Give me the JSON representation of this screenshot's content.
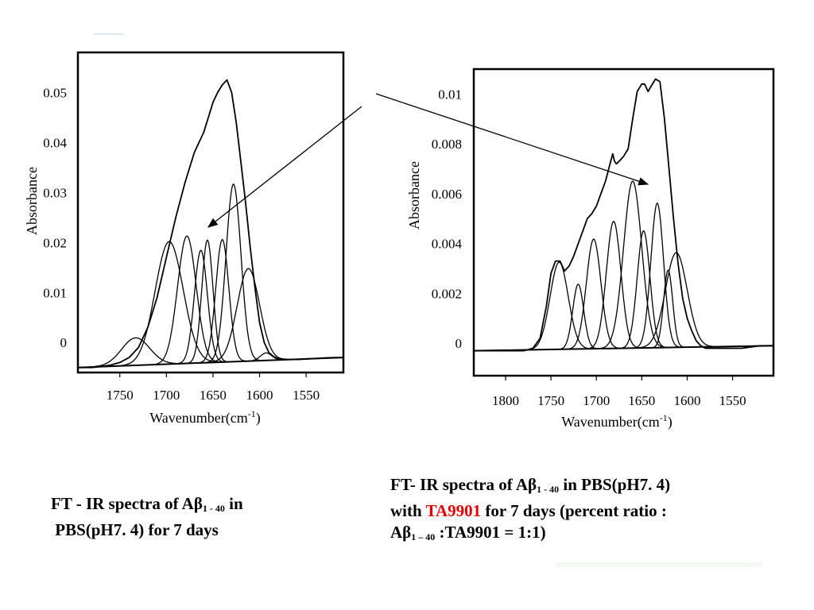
{
  "captions": {
    "left": {
      "line1_pre": "FT - IR spectra of A",
      "beta": "β",
      "sub": "1 - 40",
      "line1_post": " in",
      "line2": "PBS(pH7. 4) for 7 days"
    },
    "right": {
      "line1_pre": "FT- IR spectra of A",
      "beta": "β",
      "sub": "1 - 40",
      "line1_post": " in PBS(pH7. 4)",
      "line2_pre": "with ",
      "highlight": "TA9901",
      "line2_post": " for 7 days (percent ratio :",
      "line3_pre": "A",
      "beta2": "β",
      "sub2": "1 – 40",
      "line3_post": " :TA9901 = 1:1)"
    }
  },
  "colors": {
    "highlight": "#e60000",
    "line": "#000000"
  },
  "chart_data": [
    {
      "type": "line",
      "xlabel": "Wavenumber(cm",
      "xlabel_sup": "-1",
      "xlabel_close": ")",
      "ylabel": "Absorbance",
      "x_ticks": [
        1750,
        1700,
        1650,
        1600,
        1550
      ],
      "y_ticks": [
        0,
        0.01,
        0.02,
        0.03,
        0.04,
        0.05
      ],
      "y_tick_labels": [
        "0",
        "0.01",
        "0.02",
        "0.03",
        "0.04",
        "0.05"
      ],
      "xlim": [
        1795,
        1510
      ],
      "ylim": [
        -0.006,
        0.058
      ],
      "baseline": {
        "x": [
          1795,
          1510
        ],
        "y": [
          -0.005,
          -0.003
        ]
      },
      "envelope": {
        "x": [
          1795,
          1780,
          1770,
          1760,
          1750,
          1740,
          1730,
          1720,
          1710,
          1700,
          1690,
          1680,
          1670,
          1660,
          1655,
          1650,
          1645,
          1640,
          1635,
          1630,
          1625,
          1620,
          1615,
          1610,
          1605,
          1600,
          1595,
          1590,
          1585,
          1580,
          1570,
          1560,
          1550,
          1540,
          1530,
          1520,
          1510
        ],
        "y": [
          -0.005,
          -0.005,
          -0.0048,
          -0.0045,
          -0.004,
          -0.003,
          -0.001,
          0.003,
          0.009,
          0.017,
          0.025,
          0.032,
          0.038,
          0.042,
          0.045,
          0.048,
          0.05,
          0.0515,
          0.0525,
          0.05,
          0.044,
          0.036,
          0.028,
          0.019,
          0.011,
          0.004,
          0.0,
          -0.002,
          -0.0028,
          -0.0032,
          -0.0034,
          -0.0034,
          -0.0033,
          -0.0032,
          -0.0031,
          -0.003,
          -0.003
        ]
      },
      "components": [
        {
          "center": 1733,
          "height": 0.0055,
          "width": 15
        },
        {
          "center": 1697,
          "height": 0.0245,
          "width": 15
        },
        {
          "center": 1678,
          "height": 0.0255,
          "width": 10
        },
        {
          "center": 1663,
          "height": 0.0225,
          "width": 7
        },
        {
          "center": 1656,
          "height": 0.0245,
          "width": 6
        },
        {
          "center": 1640,
          "height": 0.0245,
          "width": 7
        },
        {
          "center": 1628,
          "height": 0.0355,
          "width": 8
        },
        {
          "center": 1612,
          "height": 0.0185,
          "width": 12
        },
        {
          "center": 1593,
          "height": 0.0015,
          "width": 6
        }
      ]
    },
    {
      "type": "line",
      "xlabel": "Wavenumber(cm",
      "xlabel_sup": "-1",
      "xlabel_close": ")",
      "ylabel": "Absorbance",
      "x_ticks": [
        1800,
        1750,
        1700,
        1650,
        1600,
        1550
      ],
      "y_ticks": [
        0,
        0.002,
        0.004,
        0.006,
        0.008,
        0.01
      ],
      "y_tick_labels": [
        "0",
        "0.002",
        "0.004",
        "0.006",
        "0.008",
        "0.01"
      ],
      "xlim": [
        1835,
        1505
      ],
      "ylim": [
        -0.0013,
        0.011
      ],
      "baseline": {
        "x": [
          1835,
          1505
        ],
        "y": [
          -0.0003,
          -0.0001
        ]
      },
      "envelope": {
        "x": [
          1835,
          1780,
          1770,
          1762,
          1755,
          1750,
          1745,
          1740,
          1735,
          1730,
          1725,
          1720,
          1715,
          1710,
          1705,
          1700,
          1695,
          1690,
          1685,
          1682,
          1680,
          1678,
          1675,
          1670,
          1665,
          1660,
          1655,
          1650,
          1647,
          1643,
          1640,
          1635,
          1630,
          1625,
          1620,
          1615,
          1610,
          1605,
          1600,
          1595,
          1590,
          1585,
          1580,
          1575,
          1570,
          1560,
          1540,
          1520,
          1505
        ],
        "y": [
          -0.0003,
          -0.0003,
          -0.0002,
          0.0002,
          0.0015,
          0.0028,
          0.0033,
          0.0033,
          0.0029,
          0.0031,
          0.0035,
          0.004,
          0.0045,
          0.005,
          0.0052,
          0.0055,
          0.006,
          0.0065,
          0.0072,
          0.0076,
          0.0073,
          0.0072,
          0.0073,
          0.0075,
          0.0078,
          0.009,
          0.0101,
          0.0104,
          0.0104,
          0.0101,
          0.0103,
          0.0106,
          0.0105,
          0.009,
          0.007,
          0.005,
          0.0032,
          0.0018,
          0.001,
          0.0005,
          0.0001,
          -0.0001,
          -0.0002,
          -0.0002,
          -0.0002,
          -0.0002,
          -0.0002,
          -0.0001,
          -0.0001
        ]
      },
      "components": [
        {
          "center": 1741,
          "height": 0.0035,
          "width": 10
        },
        {
          "center": 1720,
          "height": 0.0026,
          "width": 6
        },
        {
          "center": 1703,
          "height": 0.0044,
          "width": 8
        },
        {
          "center": 1681,
          "height": 0.0051,
          "width": 8
        },
        {
          "center": 1660,
          "height": 0.0067,
          "width": 10
        },
        {
          "center": 1648,
          "height": 0.0047,
          "width": 7
        },
        {
          "center": 1633,
          "height": 0.0058,
          "width": 7
        },
        {
          "center": 1621,
          "height": 0.0031,
          "width": 5
        },
        {
          "center": 1612,
          "height": 0.0038,
          "width": 12
        }
      ]
    }
  ]
}
